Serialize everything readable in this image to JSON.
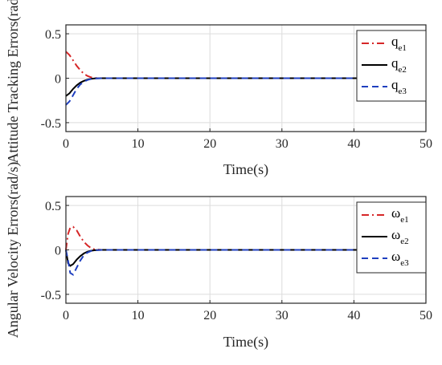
{
  "chart_data": [
    {
      "type": "line",
      "ylabel": "Attitude Tracking Errors(rad)",
      "xlabel": "Time(s)",
      "xlim": [
        0,
        50
      ],
      "ylim": [
        -0.6,
        0.6
      ],
      "xticks": [
        "0",
        "10",
        "20",
        "30",
        "40",
        "50"
      ],
      "yticks": [
        "0.5",
        "0",
        "-0.5"
      ],
      "ytick_values": [
        0.5,
        0,
        -0.5
      ],
      "grid": true,
      "legend_position": "top-right",
      "series": [
        {
          "name": "q",
          "subscript": "e1",
          "color": "#d62728",
          "dash": "dashdot",
          "x": [
            0,
            0.5,
            1,
            1.5,
            2,
            2.5,
            3,
            3.5,
            4,
            5,
            10,
            20,
            30,
            40,
            50
          ],
          "y": [
            0.3,
            0.26,
            0.2,
            0.14,
            0.09,
            0.05,
            0.025,
            0.01,
            0.003,
            0,
            0,
            0,
            0,
            0,
            0
          ]
        },
        {
          "name": "q",
          "subscript": "e2",
          "color": "#000000",
          "dash": "solid",
          "x": [
            0,
            0.5,
            1,
            1.5,
            2,
            2.5,
            3,
            3.5,
            4,
            5,
            10,
            20,
            30,
            40,
            50
          ],
          "y": [
            -0.2,
            -0.17,
            -0.12,
            -0.08,
            -0.05,
            -0.03,
            -0.015,
            -0.006,
            -0.002,
            0,
            0,
            0,
            0,
            0,
            0
          ]
        },
        {
          "name": "q",
          "subscript": "e3",
          "color": "#1f3fbf",
          "dash": "dashed",
          "x": [
            0,
            0.5,
            1,
            1.5,
            2,
            2.5,
            3,
            3.5,
            4,
            5,
            10,
            20,
            30,
            40,
            50
          ],
          "y": [
            -0.3,
            -0.26,
            -0.19,
            -0.12,
            -0.07,
            -0.04,
            -0.02,
            -0.008,
            -0.003,
            0,
            0,
            0,
            0,
            0,
            0
          ]
        }
      ]
    },
    {
      "type": "line",
      "ylabel": "Angular Velocity Errors(rad/s)",
      "xlabel": "Time(s)",
      "xlim": [
        0,
        50
      ],
      "ylim": [
        -0.6,
        0.6
      ],
      "xticks": [
        "0",
        "10",
        "20",
        "30",
        "40",
        "50"
      ],
      "yticks": [
        "0.5",
        "0",
        "-0.5"
      ],
      "ytick_values": [
        0.5,
        0,
        -0.5
      ],
      "grid": true,
      "legend_position": "top-right",
      "series": [
        {
          "name": "ω",
          "subscript": "e1",
          "color": "#d62728",
          "dash": "dashdot",
          "x": [
            0,
            0.3,
            0.6,
            1,
            1.5,
            2,
            2.5,
            3,
            3.5,
            4,
            5,
            10,
            20,
            30,
            40,
            50
          ],
          "y": [
            0,
            0.18,
            0.25,
            0.26,
            0.22,
            0.15,
            0.09,
            0.05,
            0.02,
            0.005,
            0,
            0,
            0,
            0,
            0,
            0
          ]
        },
        {
          "name": "ω",
          "subscript": "e2",
          "color": "#000000",
          "dash": "solid",
          "x": [
            0,
            0.3,
            0.6,
            1,
            1.5,
            2,
            2.5,
            3,
            3.5,
            4,
            5,
            10,
            20,
            30,
            40,
            50
          ],
          "y": [
            0,
            -0.15,
            -0.18,
            -0.16,
            -0.11,
            -0.07,
            -0.04,
            -0.02,
            -0.01,
            -0.004,
            0,
            0,
            0,
            0,
            0,
            0
          ]
        },
        {
          "name": "ω",
          "subscript": "e3",
          "color": "#1f3fbf",
          "dash": "dashed",
          "x": [
            0,
            0.3,
            0.6,
            1,
            1.5,
            2,
            2.5,
            3,
            3.5,
            4,
            5,
            10,
            20,
            30,
            40,
            50
          ],
          "y": [
            0,
            -0.12,
            -0.26,
            -0.28,
            -0.2,
            -0.12,
            -0.06,
            -0.03,
            -0.012,
            -0.004,
            0,
            0,
            0,
            0,
            0,
            0
          ]
        }
      ]
    }
  ]
}
